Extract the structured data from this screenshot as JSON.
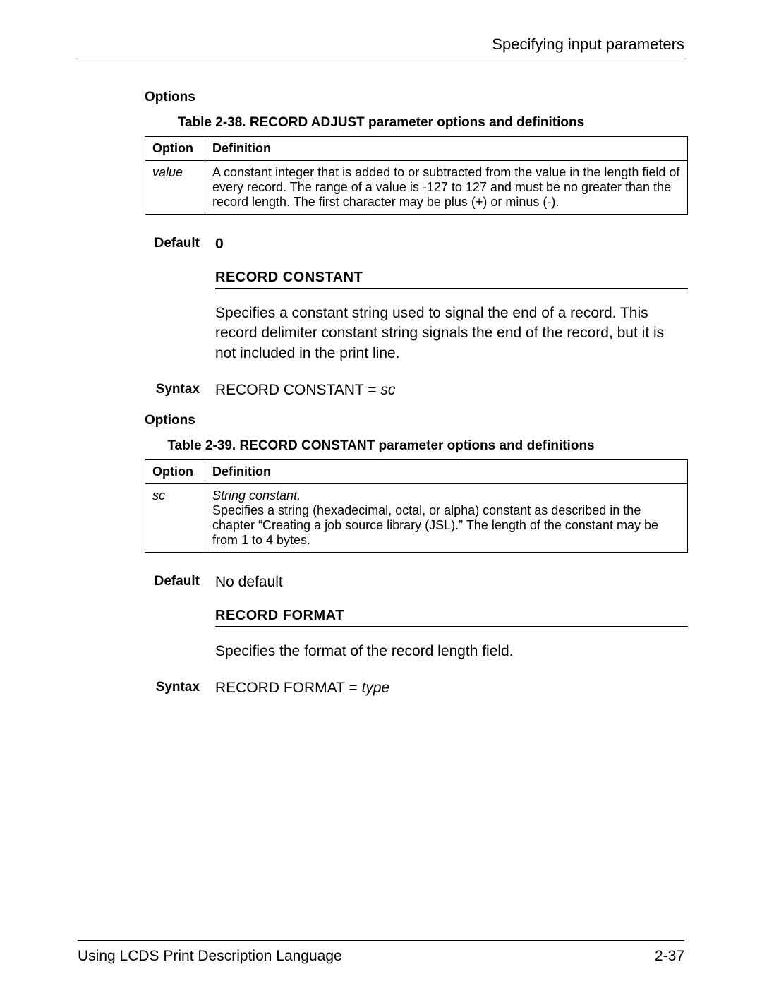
{
  "header": {
    "title": "Specifying input parameters"
  },
  "s1": {
    "options_label": "Options",
    "table_caption": "Table 2-38. RECORD ADJUST parameter options and definitions",
    "col_option": "Option",
    "col_def": "Definition",
    "row_option": "value",
    "row_def": "A constant integer that is added to or subtracted from the value in the length field of every record. The range of a value is -127 to 127 and must be no greater than the record length. The first character may be plus (+) or minus (-).",
    "default_label": "Default",
    "default_value": "0"
  },
  "s2": {
    "heading": "RECORD CONSTANT",
    "desc": "Specifies a constant string used to signal the end of a record. This record delimiter constant string signals the end of the record, but it is not included in the print line.",
    "syntax_label": "Syntax",
    "syntax_value_a": "RECORD CONSTANT = ",
    "syntax_value_b": "sc",
    "options_label": "Options",
    "table_caption": "Table 2-39. RECORD CONSTANT parameter options and definitions",
    "col_option": "Option",
    "col_def": "Definition",
    "row_option": "sc",
    "row_def_a": "String constant.",
    "row_def_b": "Specifies a string (hexadecimal, octal, or alpha) constant as described in the chapter “Creating a job source library (JSL).” The length of the constant may be from 1 to 4 bytes.",
    "default_label": "Default",
    "default_value": "No default"
  },
  "s3": {
    "heading": "RECORD FORMAT",
    "desc": "Specifies the format of the record length field.",
    "syntax_label": "Syntax",
    "syntax_value_a": "RECORD FORMAT = ",
    "syntax_value_b": "type"
  },
  "footer": {
    "left": "Using LCDS Print Description Language",
    "right": "2-37"
  }
}
